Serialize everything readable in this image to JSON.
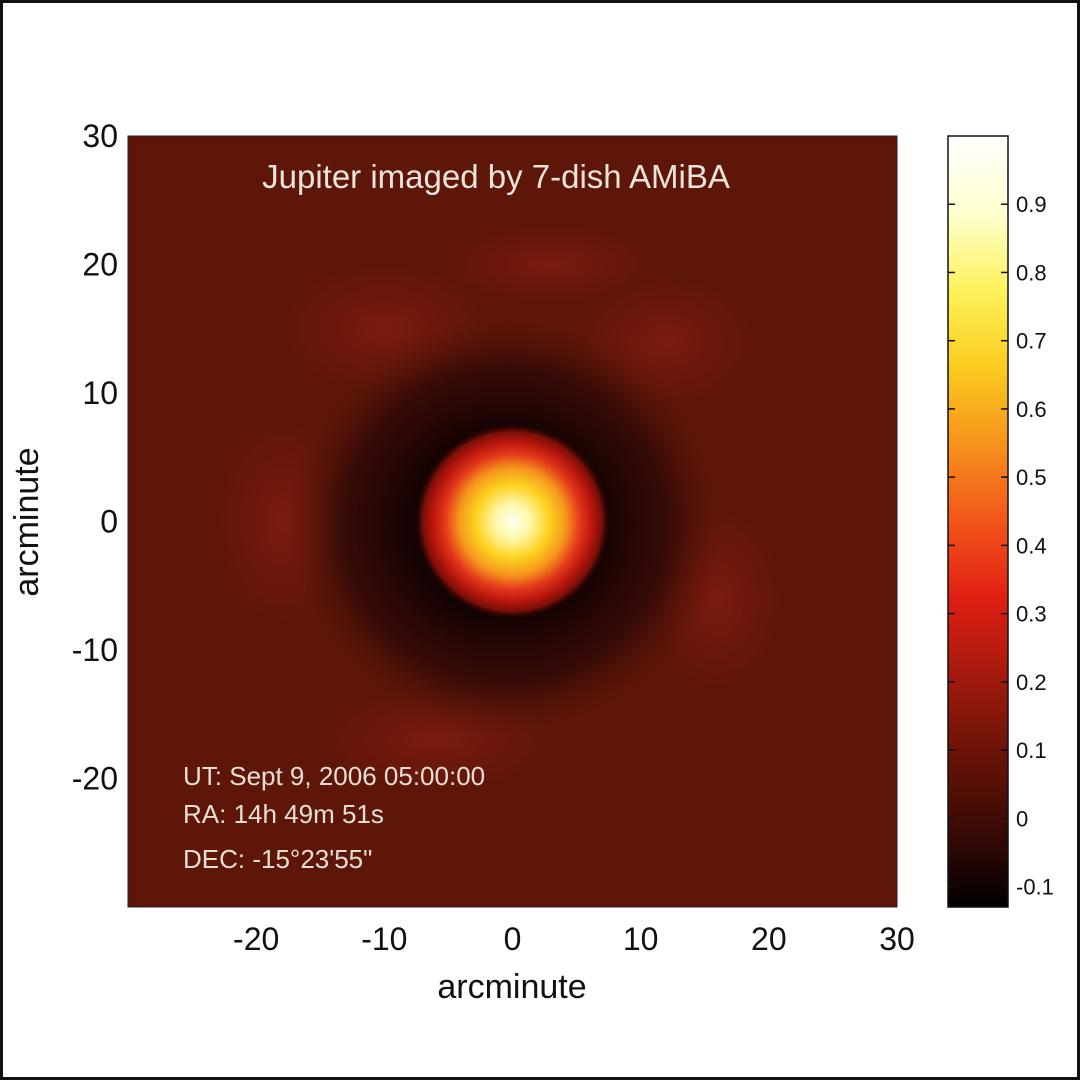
{
  "chart_data": {
    "type": "heatmap",
    "title": "Jupiter imaged by 7-dish AMiBA",
    "xlabel": "arcminute",
    "ylabel": "arcminute",
    "xlim": [
      -30,
      30
    ],
    "ylim": [
      -30,
      30
    ],
    "xticks": [
      "-20",
      "-10",
      "0",
      "10",
      "20",
      "30"
    ],
    "yticks": [
      "30",
      "20",
      "10",
      "0",
      "-10",
      "-20"
    ],
    "xtick_values": [
      -20,
      -10,
      0,
      10,
      20,
      30
    ],
    "ytick_values": [
      30,
      20,
      10,
      0,
      -10,
      -20
    ],
    "colorbar": {
      "range": [
        -0.13,
        1.0
      ],
      "ticks": [
        "0.9",
        "0.8",
        "0.7",
        "0.6",
        "0.5",
        "0.4",
        "0.3",
        "0.2",
        "0.1",
        "0",
        "-0.1"
      ],
      "tick_values": [
        0.9,
        0.8,
        0.7,
        0.6,
        0.5,
        0.4,
        0.3,
        0.2,
        0.1,
        0,
        -0.1
      ],
      "colors": [
        "#000000",
        "#3a0a05",
        "#6a1308",
        "#a31a0d",
        "#e01e12",
        "#f2551a",
        "#f7921d",
        "#fbcc1e",
        "#fdf25c",
        "#ffffcf",
        "#ffffff"
      ]
    },
    "peak": {
      "x": 0,
      "y": 0,
      "value": 1.0
    },
    "background_value": 0.04,
    "annotations": [
      "UT: Sept 9, 2006  05:00:00",
      "RA: 14h 49m 51s",
      "DEC: -15°23'55\""
    ]
  }
}
